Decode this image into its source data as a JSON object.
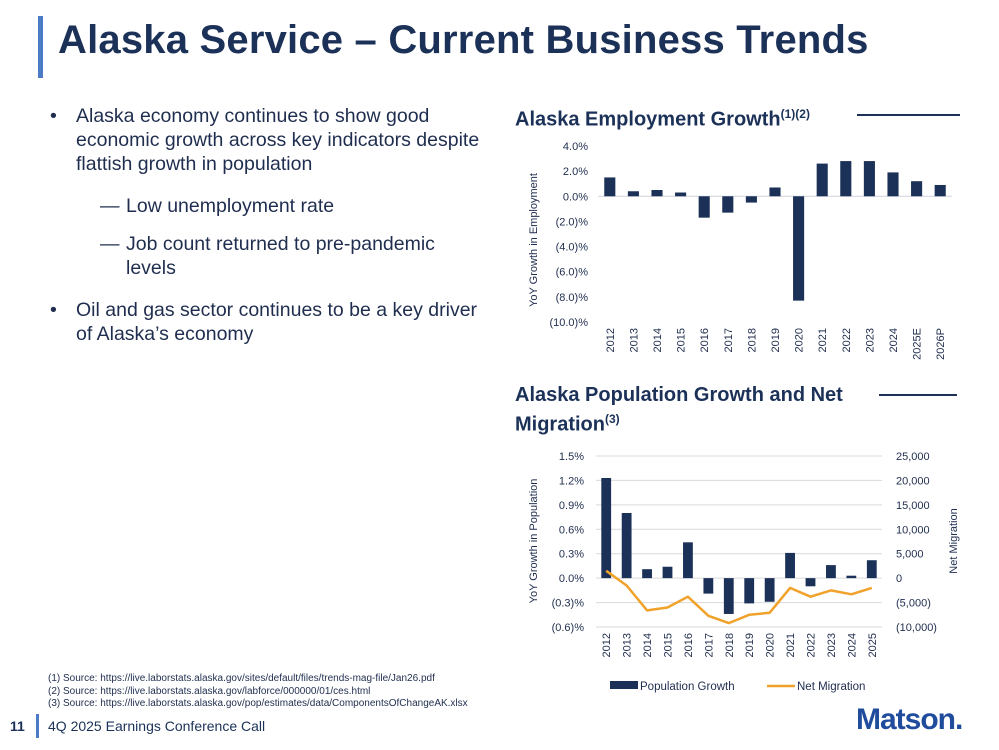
{
  "slide": {
    "title": "Alaska Service – Current Business Trends",
    "bullets": [
      {
        "level": 1,
        "text": "Alaska economy continues to show good economic growth across key indicators despite flattish growth in population"
      },
      {
        "level": 2,
        "text": "Low unemployment rate"
      },
      {
        "level": 2,
        "text": "Job count returned to pre-pandemic levels"
      },
      {
        "level": 1,
        "text": "Oil and gas sector continues to be a key driver of Alaska’s economy"
      }
    ],
    "bullet_marker": "•",
    "sub_marker": "—",
    "footnotes": [
      "(1)  Source: https://live.laborstats.alaska.gov/sites/default/files/trends-mag-file/Jan26.pdf",
      "(2)  Source: https://live.laborstats.alaska.gov/labforce/000000/01/ces.html",
      "(3)  Source: https://live.laborstats.alaska.gov/pop/estimates/data/ComponentsOfChangeAK.xlsx"
    ],
    "page_number": "11",
    "footer_text": "4Q 2025 Earnings Conference Call",
    "logo_text": "Matson."
  },
  "colors": {
    "navy": "#1b3158",
    "accent_blue": "#4a7bc4",
    "orange": "#f0a22a",
    "logo_blue": "#1f4c9c"
  },
  "chart_data": [
    {
      "type": "bar",
      "title": "Alaska Employment Growth",
      "title_sup": "(1)(2)",
      "ylabel": "YoY Growth in Employment",
      "categories": [
        "2012",
        "2013",
        "2014",
        "2015",
        "2016",
        "2017",
        "2018",
        "2019",
        "2020",
        "2021",
        "2022",
        "2023",
        "2024",
        "2025E",
        "2026P"
      ],
      "values": [
        1.5,
        0.4,
        0.5,
        0.3,
        -1.7,
        -1.3,
        -0.5,
        0.7,
        -8.3,
        2.6,
        2.8,
        2.8,
        1.9,
        1.2,
        0.9
      ],
      "ylim": [
        -10,
        4
      ],
      "yticks": [
        4,
        2,
        0,
        -2,
        -4,
        -6,
        -8,
        -10
      ],
      "ytick_labels": [
        "4.0%",
        "2.0%",
        "0.0%",
        "(2.0)%",
        "(4.0)%",
        "(6.0)%",
        "(8.0)%",
        "(10.0)%"
      ]
    },
    {
      "type": "bar+line",
      "title": "Alaska Population Growth and Net Migration",
      "title_sup": "(3)",
      "ylabel": "YoY Growth in Population",
      "y2label": "Net Migration",
      "categories": [
        "2012",
        "2013",
        "2014",
        "2015",
        "2016",
        "2017",
        "2018",
        "2019",
        "2020",
        "2021",
        "2022",
        "2023",
        "2024",
        "2025"
      ],
      "series": [
        {
          "name": "Population Growth",
          "type": "bar",
          "axis": "left",
          "values": [
            1.23,
            0.8,
            0.11,
            0.14,
            0.44,
            -0.19,
            -0.44,
            -0.31,
            -0.29,
            0.31,
            -0.1,
            0.16,
            0.03,
            0.22
          ]
        },
        {
          "name": "Net Migration",
          "type": "line",
          "axis": "right",
          "values": [
            1500,
            -1500,
            -6600,
            -6000,
            -3800,
            -7700,
            -9200,
            -7500,
            -7100,
            -2000,
            -3800,
            -2500,
            -3300,
            -2000
          ]
        }
      ],
      "ylim": [
        -0.6,
        1.5
      ],
      "yticks": [
        1.5,
        1.2,
        0.9,
        0.6,
        0.3,
        0.0,
        -0.3,
        -0.6
      ],
      "ytick_labels": [
        "1.5%",
        "1.2%",
        "0.9%",
        "0.6%",
        "0.3%",
        "0.0%",
        "(0.3)%",
        "(0.6)%"
      ],
      "y2lim": [
        -10000,
        25000
      ],
      "y2ticks": [
        25000,
        20000,
        15000,
        10000,
        5000,
        0,
        -5000,
        -10000
      ],
      "y2tick_labels": [
        "25,000",
        "20,000",
        "15,000",
        "10,000",
        "5,000",
        "0",
        "(5,000)",
        "(10,000)"
      ],
      "legend": "bottom",
      "grid": true
    }
  ]
}
